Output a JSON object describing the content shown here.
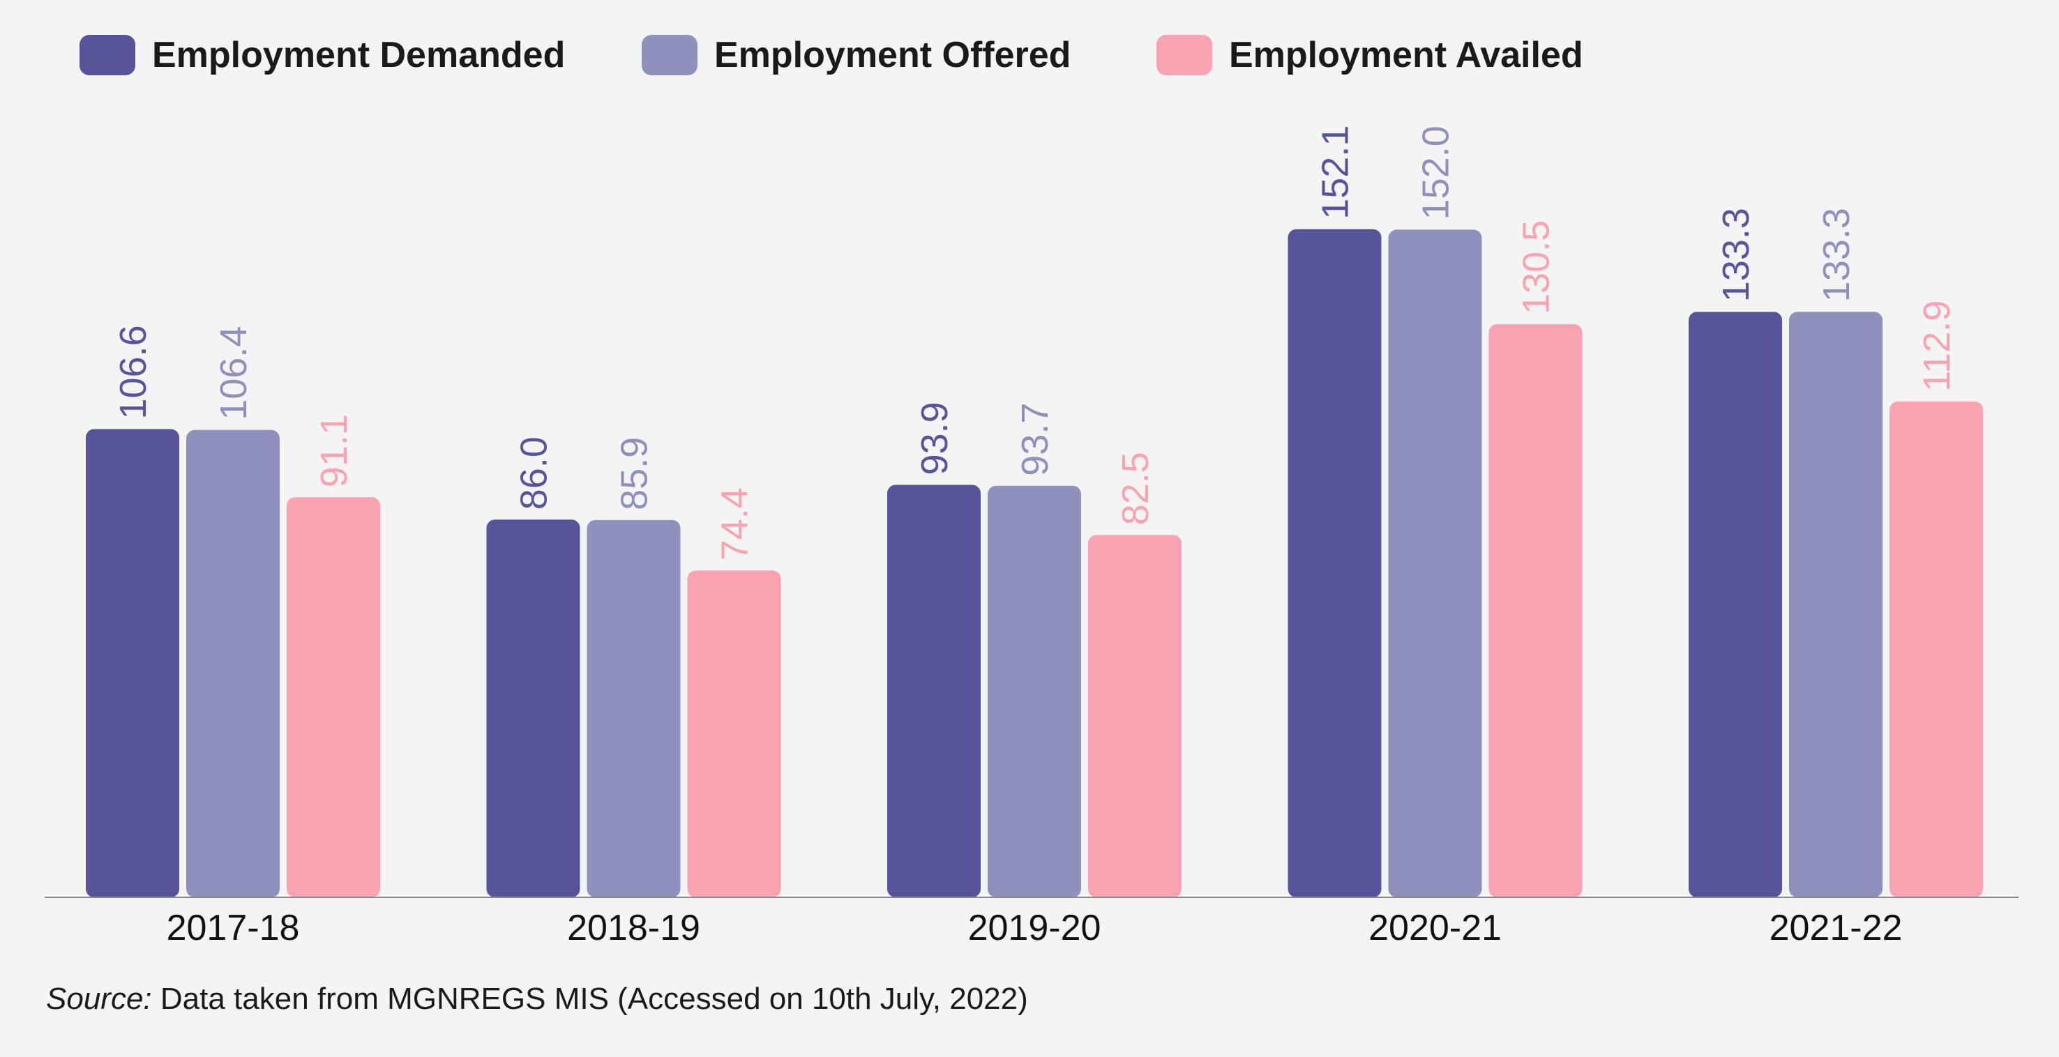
{
  "chart_data": {
    "type": "bar",
    "categories": [
      "2017-18",
      "2018-19",
      "2019-20",
      "2020-21",
      "2021-22"
    ],
    "series": [
      {
        "name": "Employment Demanded",
        "color": "#58549b",
        "values": [
          106.6,
          86.0,
          93.9,
          152.1,
          133.3
        ],
        "labels": [
          "106.6",
          "86.0",
          "93.9",
          "152.1",
          "133.3"
        ]
      },
      {
        "name": "Employment Offered",
        "color": "#9090bd",
        "values": [
          106.4,
          85.9,
          93.7,
          152.0,
          133.3
        ],
        "labels": [
          "106.4",
          "85.9",
          "93.7",
          "152.0",
          "133.3"
        ]
      },
      {
        "name": "Employment Availed",
        "color": "#f9a3b2",
        "values": [
          91.1,
          74.4,
          82.5,
          130.5,
          112.9
        ],
        "labels": [
          "91.1",
          "74.4",
          "82.5",
          "130.5",
          "112.9"
        ]
      }
    ],
    "ylim": [
      0,
      160
    ],
    "grid": false,
    "legend_position": "top-left",
    "data_labels": "rotated above bars"
  },
  "source": {
    "prefix": "Source:",
    "text": " Data taken from MGNREGS MIS (Accessed on 10th July, 2022)"
  }
}
